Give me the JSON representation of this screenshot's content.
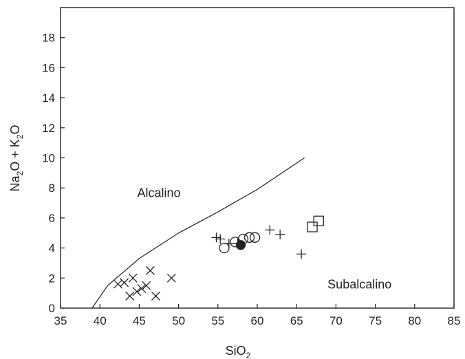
{
  "chart_data": {
    "type": "scatter",
    "title": "",
    "xlabel": {
      "base": "SiO",
      "sub": "2"
    },
    "ylabel": {
      "a": "Na",
      "a_sub": "2",
      "b": "O + K",
      "b_sub": "2",
      "c": "O"
    },
    "xlim": [
      35,
      85
    ],
    "ylim": [
      0,
      20
    ],
    "xticks": [
      35,
      40,
      45,
      50,
      55,
      60,
      65,
      70,
      75,
      80,
      85
    ],
    "yticks": [
      0,
      2,
      4,
      6,
      8,
      10,
      12,
      14,
      16,
      18
    ],
    "grid": false,
    "boundary_line": [
      [
        39,
        0
      ],
      [
        41,
        1.5
      ],
      [
        45,
        3.3
      ],
      [
        50,
        5
      ],
      [
        55,
        6.4
      ],
      [
        60,
        7.9
      ],
      [
        66,
        10
      ]
    ],
    "regions": [
      {
        "label": "Alcalino",
        "x": 47.5,
        "y": 7.4
      },
      {
        "label": "Subalcalino",
        "x": 73,
        "y": 1.3
      }
    ],
    "series": [
      {
        "marker": "x",
        "points": [
          [
            42.3,
            1.6
          ],
          [
            43.1,
            1.7
          ],
          [
            43.8,
            0.8
          ],
          [
            44.2,
            2.0
          ],
          [
            44.7,
            1.1
          ],
          [
            45.3,
            1.3
          ],
          [
            45.9,
            1.5
          ],
          [
            46.4,
            2.5
          ],
          [
            47.1,
            0.8
          ],
          [
            49.1,
            2.0
          ]
        ]
      },
      {
        "marker": "plus",
        "points": [
          [
            54.8,
            4.7
          ],
          [
            55.3,
            4.6
          ],
          [
            56.4,
            4.3
          ],
          [
            57.5,
            4.3
          ],
          [
            61.6,
            5.2
          ],
          [
            62.9,
            4.9
          ],
          [
            65.6,
            3.6
          ]
        ]
      },
      {
        "marker": "circle",
        "points": [
          [
            55.8,
            4.0
          ],
          [
            57.2,
            4.4
          ],
          [
            58.2,
            4.6
          ],
          [
            59.0,
            4.7
          ],
          [
            59.7,
            4.7
          ]
        ]
      },
      {
        "marker": "filled-circle",
        "points": [
          [
            57.9,
            4.2
          ]
        ]
      },
      {
        "marker": "square",
        "points": [
          [
            67.0,
            5.4
          ],
          [
            67.8,
            5.8
          ]
        ]
      }
    ]
  }
}
